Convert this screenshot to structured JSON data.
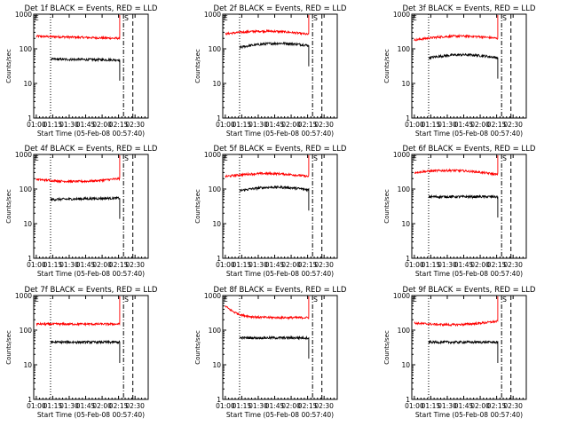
{
  "common": {
    "xlabel": "Start Time (05-Feb-08 00:57:40)",
    "ylabel": "Counts/sec",
    "xticks": [
      "01:00",
      "01:15",
      "01:30",
      "01:45",
      "02:00",
      "02:15",
      "02:30"
    ],
    "xtick_minutes": [
      60,
      75,
      90,
      105,
      120,
      135,
      150
    ],
    "xlim_minutes": [
      57.67,
      162
    ],
    "yticks": [
      "1",
      "10",
      "100",
      "1000"
    ],
    "ytick_values": [
      1,
      10,
      100,
      1000
    ],
    "ylim": [
      1,
      1000
    ],
    "yscale": "log",
    "marker_E": "E",
    "marker_S": "S",
    "vlines_minutes": {
      "dotted": 73,
      "dashdot": 139.5,
      "dashed": 148
    },
    "colors": {
      "events": "#000000",
      "lld": "#ff0000"
    }
  },
  "chart_data": [
    {
      "type": "line",
      "title": "Det 1f BLACK = Events, RED = LLD",
      "series": [
        {
          "values_start": 60,
          "values_end": 136,
          "lld_start": 230,
          "lld_end": 200,
          "lld_shape": "flat"
        },
        {
          "start_min": 73,
          "end_min": 136,
          "events_start": 50,
          "events_end": 48,
          "shape": "flat"
        }
      ]
    },
    {
      "type": "line",
      "title": "Det 2f BLACK = Events, RED = LLD",
      "series": [
        {
          "values_start": 60,
          "values_end": 136,
          "lld_start": 270,
          "lld_end": 260,
          "lld_shape": "hump"
        },
        {
          "start_min": 73,
          "end_min": 136,
          "events_start": 110,
          "events_end": 125,
          "shape": "hump"
        }
      ]
    },
    {
      "type": "line",
      "title": "Det 3f BLACK = Events, RED = LLD",
      "series": [
        {
          "values_start": 60,
          "values_end": 136,
          "lld_start": 180,
          "lld_end": 200,
          "lld_shape": "hump"
        },
        {
          "start_min": 73,
          "end_min": 136,
          "events_start": 55,
          "events_end": 55,
          "shape": "hump"
        }
      ]
    },
    {
      "type": "line",
      "title": "Det 4f BLACK = Events, RED = LLD",
      "series": [
        {
          "values_start": 60,
          "values_end": 136,
          "lld_start": 190,
          "lld_end": 200,
          "lld_shape": "dip"
        },
        {
          "start_min": 73,
          "end_min": 136,
          "events_start": 50,
          "events_end": 55,
          "shape": "flat"
        }
      ]
    },
    {
      "type": "line",
      "title": "Det 5f BLACK = Events, RED = LLD",
      "series": [
        {
          "values_start": 60,
          "values_end": 136,
          "lld_start": 230,
          "lld_end": 230,
          "lld_shape": "hump"
        },
        {
          "start_min": 73,
          "end_min": 136,
          "events_start": 90,
          "events_end": 95,
          "shape": "hump"
        }
      ]
    },
    {
      "type": "line",
      "title": "Det 6f BLACK = Events, RED = LLD",
      "series": [
        {
          "values_start": 60,
          "values_end": 136,
          "lld_start": 300,
          "lld_end": 260,
          "lld_shape": "hump"
        },
        {
          "start_min": 73,
          "end_min": 136,
          "events_start": 60,
          "events_end": 60,
          "shape": "flat"
        }
      ]
    },
    {
      "type": "line",
      "title": "Det 7f BLACK = Events, RED = LLD",
      "series": [
        {
          "values_start": 60,
          "values_end": 136,
          "lld_start": 150,
          "lld_end": 150,
          "lld_shape": "flat"
        },
        {
          "start_min": 73,
          "end_min": 136,
          "events_start": 45,
          "events_end": 45,
          "shape": "flat"
        }
      ]
    },
    {
      "type": "line",
      "title": "Det 8f BLACK = Events, RED = LLD",
      "series": [
        {
          "values_start": 60,
          "values_end": 136,
          "lld_start": 500,
          "lld_end": 230,
          "lld_shape": "decay"
        },
        {
          "start_min": 73,
          "end_min": 136,
          "events_start": 60,
          "events_end": 60,
          "shape": "flat"
        }
      ]
    },
    {
      "type": "line",
      "title": "Det 9f BLACK = Events, RED = LLD",
      "series": [
        {
          "values_start": 60,
          "values_end": 136,
          "lld_start": 160,
          "lld_end": 180,
          "lld_shape": "dip"
        },
        {
          "start_min": 73,
          "end_min": 136,
          "events_start": 45,
          "events_end": 45,
          "shape": "flat"
        }
      ]
    }
  ]
}
